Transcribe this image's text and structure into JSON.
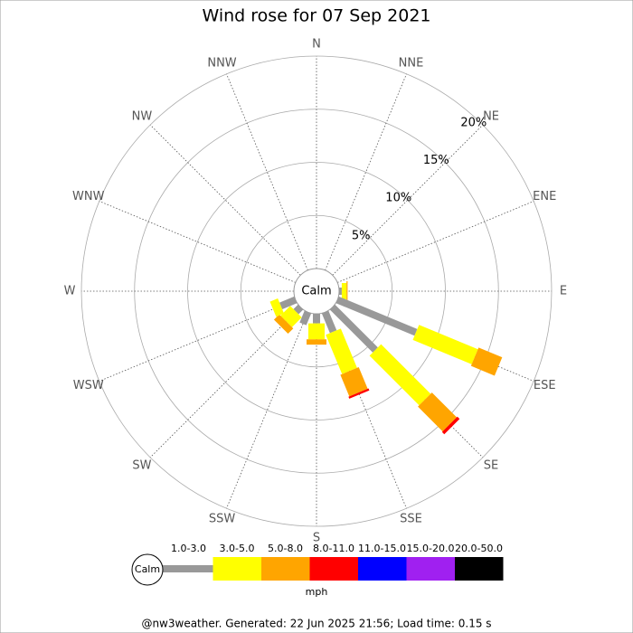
{
  "chart_data": {
    "type": "windrose",
    "title": "Wind rose for 07 Sep 2021",
    "center_label": "Calm",
    "directions": [
      "N",
      "NNE",
      "NE",
      "ENE",
      "E",
      "ESE",
      "SE",
      "SSE",
      "S",
      "SSW",
      "SW",
      "WSW",
      "W",
      "WNW",
      "NW",
      "NNW"
    ],
    "rlim": [
      0,
      20
    ],
    "rticks": [
      {
        "value": 5,
        "label": "5%"
      },
      {
        "value": 10,
        "label": "10%"
      },
      {
        "value": 15,
        "label": "15%"
      },
      {
        "value": 20,
        "label": "20%"
      }
    ],
    "unit": "mph",
    "series": [
      {
        "name": "1.0-3.0",
        "color": "#999999",
        "values": [
          0,
          0,
          0,
          0,
          0.25,
          8.0,
          5.7,
          2.0,
          0.9,
          1.2,
          0.6,
          1.5,
          0,
          0,
          0,
          0
        ]
      },
      {
        "name": "3.0-5.0",
        "color": "#ffff00",
        "values": [
          0,
          0,
          0,
          0,
          0.45,
          6.0,
          6.6,
          4.0,
          1.5,
          0,
          1.3,
          0.8,
          0,
          0,
          0,
          0
        ]
      },
      {
        "name": "5.0-8.0",
        "color": "#ffa500",
        "values": [
          0,
          0,
          0,
          0,
          0.1,
          2.4,
          3.3,
          2.2,
          0.5,
          0,
          0.7,
          0,
          0,
          0,
          0,
          0
        ]
      },
      {
        "name": "8.0-11.0",
        "color": "#ff0000",
        "values": [
          0,
          0,
          0,
          0,
          0,
          0,
          0.3,
          0.2,
          0,
          0,
          0,
          0,
          0,
          0,
          0,
          0
        ]
      },
      {
        "name": "11.0-15.0",
        "color": "#0000ff",
        "values": [
          0,
          0,
          0,
          0,
          0,
          0,
          0,
          0,
          0,
          0,
          0,
          0,
          0,
          0,
          0,
          0
        ]
      },
      {
        "name": "15.0-20.0",
        "color": "#a020f0",
        "values": [
          0,
          0,
          0,
          0,
          0,
          0,
          0,
          0,
          0,
          0,
          0,
          0,
          0,
          0,
          0,
          0
        ]
      },
      {
        "name": "20.0-50.0",
        "color": "#000000",
        "values": [
          0,
          0,
          0,
          0,
          0,
          0,
          0,
          0,
          0,
          0,
          0,
          0,
          0,
          0,
          0,
          0
        ]
      }
    ]
  },
  "footer": "@nw3weather. Generated: 22 Jun 2025 21:56; Load time: 0.15 s"
}
